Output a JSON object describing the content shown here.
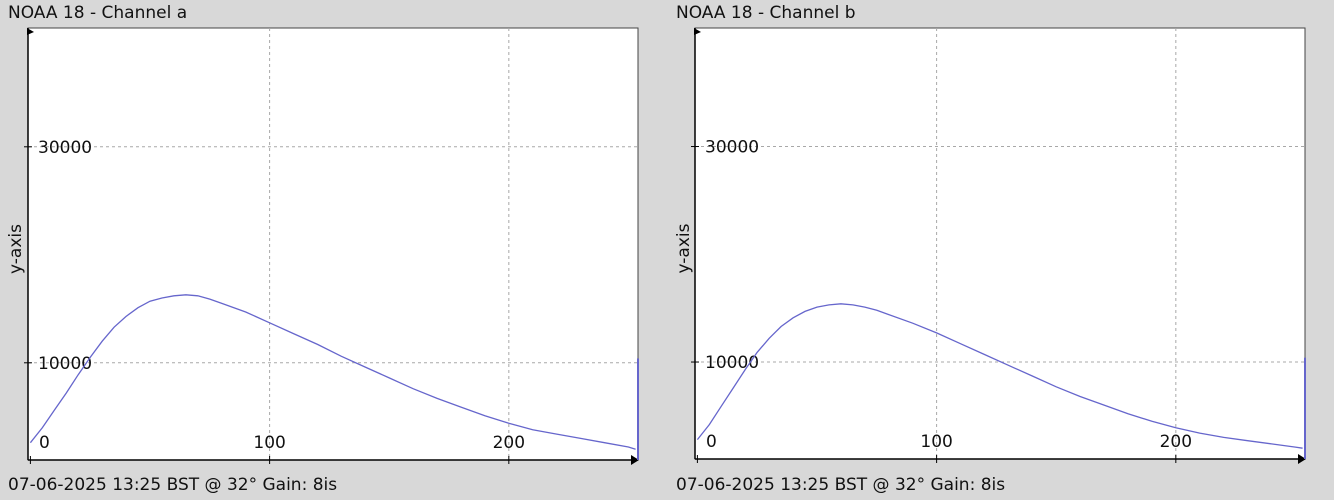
{
  "colors": {
    "background": "#d8d8d8",
    "plot": "#ffffff",
    "grid": "#a8a8a8",
    "line": "#6666cc",
    "axis": "#000000"
  },
  "chart_data": [
    {
      "type": "line",
      "title": "NOAA 18 - Channel a",
      "caption": "07-06-2025 13:25 BST @ 32° Gain: 8is",
      "xlabel": "",
      "ylabel": "y-axis",
      "xlim": [
        -1,
        254
      ],
      "ylim": [
        1000,
        41000
      ],
      "xticks": [
        0,
        100,
        200
      ],
      "yticks": [
        10000,
        30000
      ],
      "grid": true,
      "series": [
        {
          "name": "",
          "x": [
            0,
            5,
            10,
            15,
            20,
            25,
            30,
            35,
            40,
            45,
            50,
            55,
            60,
            65,
            70,
            75,
            80,
            90,
            100,
            110,
            120,
            130,
            140,
            150,
            160,
            170,
            180,
            190,
            200,
            210,
            220,
            230,
            240,
            250,
            253
          ],
          "y": [
            2600,
            4000,
            5600,
            7200,
            8900,
            10500,
            12000,
            13300,
            14300,
            15100,
            15700,
            16000,
            16200,
            16300,
            16200,
            15900,
            15500,
            14700,
            13700,
            12700,
            11700,
            10600,
            9600,
            8600,
            7600,
            6700,
            5900,
            5100,
            4400,
            3800,
            3400,
            3000,
            2600,
            2200,
            2000
          ]
        }
      ],
      "spike": {
        "x": 254,
        "y": 10400
      }
    },
    {
      "type": "line",
      "title": "NOAA 18 - Channel b",
      "caption": "07-06-2025 13:25 BST @ 32° Gain: 8is",
      "xlabel": "",
      "ylabel": "y-axis",
      "xlim": [
        -1,
        254
      ],
      "ylim": [
        1000,
        41000
      ],
      "xticks": [
        0,
        100,
        200
      ],
      "yticks": [
        10000,
        30000
      ],
      "grid": true,
      "series": [
        {
          "name": "",
          "x": [
            0,
            5,
            10,
            15,
            20,
            25,
            30,
            35,
            40,
            45,
            50,
            55,
            60,
            65,
            70,
            75,
            80,
            90,
            100,
            110,
            120,
            130,
            140,
            150,
            160,
            170,
            180,
            190,
            200,
            210,
            220,
            230,
            240,
            250,
            253
          ],
          "y": [
            2800,
            4200,
            5900,
            7600,
            9300,
            10900,
            12200,
            13300,
            14100,
            14700,
            15100,
            15300,
            15400,
            15300,
            15100,
            14800,
            14400,
            13600,
            12700,
            11700,
            10700,
            9700,
            8700,
            7700,
            6800,
            6000,
            5200,
            4500,
            3900,
            3400,
            3000,
            2700,
            2400,
            2100,
            2000
          ]
        }
      ],
      "spike": {
        "x": 254,
        "y": 10400
      }
    }
  ]
}
